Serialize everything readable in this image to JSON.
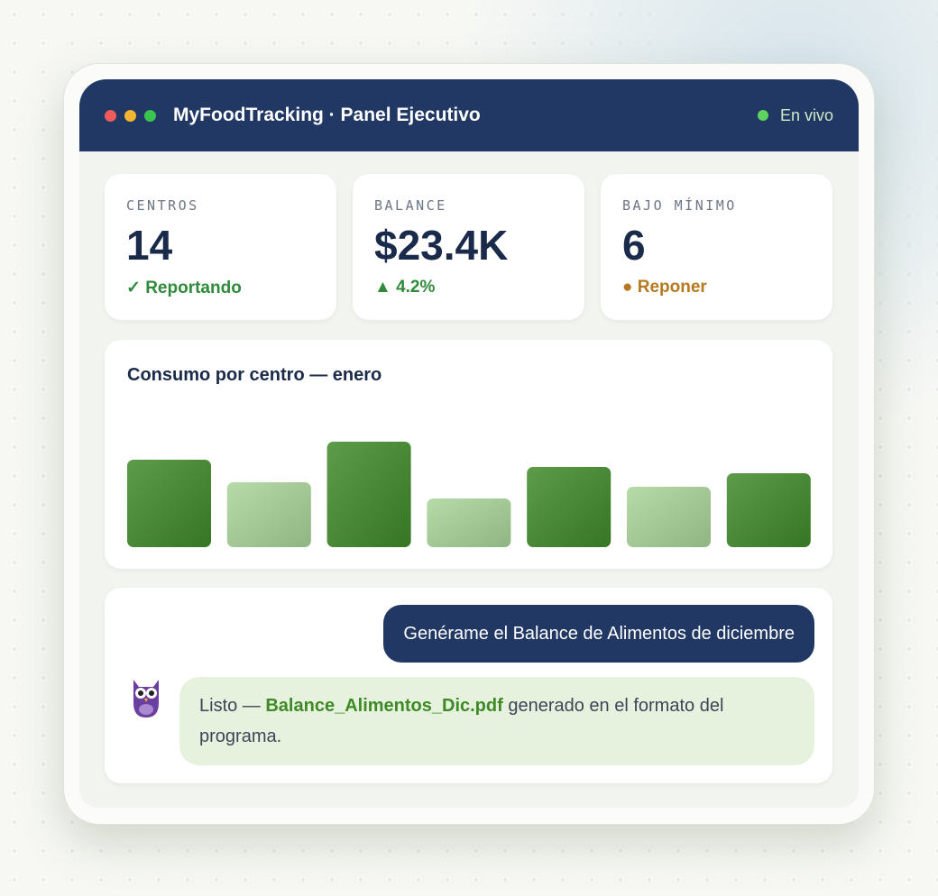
{
  "window": {
    "title": "MyFoodTracking · Panel Ejecutivo",
    "status": "En vivo"
  },
  "kpis": [
    {
      "label": "CENTROS",
      "value": 14,
      "note": "✓ Reportando",
      "note_color": "#2f8a3a"
    },
    {
      "label": "BALANCE",
      "value": "$23.4K",
      "note": "▲ 4.2%",
      "note_color": "#2f8a3a"
    },
    {
      "label": "BAJO MÍNIMO",
      "value": 6,
      "note": "● Reponer",
      "note_color": "#b7791f"
    }
  ],
  "chart_data": {
    "type": "bar",
    "title": "Consumo por centro — enero",
    "values": [
      97,
      72,
      117,
      54,
      89,
      67,
      82
    ],
    "colors": [
      "#3f8a2a",
      "#a9d59a",
      "#3f8a2a",
      "#a9d59a",
      "#3f8a2a",
      "#a9d59a",
      "#3f8a2a"
    ],
    "ylim": [
      0,
      120
    ]
  },
  "chat": {
    "user": "Genérame el Balance de Alimentos de diciembre",
    "bot_prefix": "Listo — ",
    "bot_file": "Balance_Alimentos_Dic.pdf",
    "bot_suffix": " generado en el formato del programa."
  }
}
